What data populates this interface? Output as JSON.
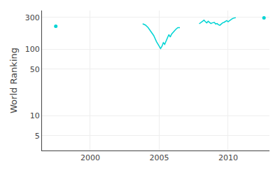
{
  "chart_data": {
    "type": "line",
    "ylabel": "World Ranking",
    "color": "#00D4D4",
    "log": "y",
    "x": [
      1997.5,
      null,
      2003.8,
      2004.0,
      2004.2,
      2004.4,
      2004.6,
      2004.8,
      2005.0,
      2005.1,
      2005.2,
      2005.3,
      2005.4,
      2005.5,
      2005.6,
      2005.7,
      2005.8,
      2005.9,
      2006.0,
      2006.1,
      2006.2,
      2006.35,
      2006.5,
      null,
      2007.9,
      2008.1,
      2008.25,
      2008.35,
      2008.45,
      2008.55,
      2008.65,
      2008.75,
      2008.85,
      2009.0,
      2009.1,
      2009.2,
      2009.3,
      2009.4,
      2009.5,
      2009.6,
      2009.7,
      2009.8,
      2009.9,
      2010.0,
      2010.1,
      2010.2,
      2010.3,
      2010.4,
      2010.55,
      null,
      2012.6
    ],
    "values": [
      220,
      null,
      240,
      230,
      210,
      185,
      160,
      130,
      108,
      102,
      110,
      125,
      118,
      130,
      148,
      165,
      152,
      168,
      178,
      188,
      198,
      210,
      210,
      null,
      240,
      258,
      272,
      258,
      248,
      262,
      250,
      242,
      248,
      252,
      238,
      242,
      232,
      228,
      238,
      248,
      252,
      262,
      268,
      258,
      268,
      278,
      286,
      292,
      296,
      null,
      295
    ],
    "xlim": [
      1996.5,
      2013.0
    ],
    "ylim": [
      3,
      380
    ],
    "xticks": [
      2000,
      2005,
      2010
    ],
    "yticks": [
      5,
      10,
      50,
      100,
      300
    ],
    "grid": true
  }
}
